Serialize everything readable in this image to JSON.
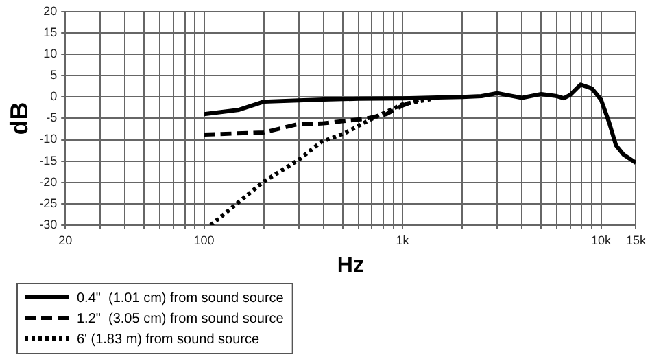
{
  "chart_data": {
    "type": "line",
    "xlabel": "Hz",
    "ylabel": "dB",
    "xlim": [
      20,
      15000
    ],
    "ylim": [
      -30,
      20
    ],
    "xticks": [
      20,
      {
        "value": 30,
        "label": null
      },
      {
        "value": 40,
        "label": null
      },
      {
        "value": 50,
        "label": null
      },
      {
        "value": 60,
        "label": null
      },
      {
        "value": 70,
        "label": null
      },
      {
        "value": 80,
        "label": null
      },
      {
        "value": 90,
        "label": null
      },
      100,
      {
        "value": 200,
        "label": null
      },
      {
        "value": 300,
        "label": null
      },
      {
        "value": 400,
        "label": null
      },
      {
        "value": 500,
        "label": null
      },
      {
        "value": 600,
        "label": null
      },
      {
        "value": 700,
        "label": null
      },
      {
        "value": 800,
        "label": null
      },
      {
        "value": 900,
        "label": null
      },
      {
        "value": 1000,
        "label": "1k"
      },
      {
        "value": 2000,
        "label": null
      },
      {
        "value": 3000,
        "label": null
      },
      {
        "value": 4000,
        "label": null
      },
      {
        "value": 5000,
        "label": null
      },
      {
        "value": 6000,
        "label": null
      },
      {
        "value": 7000,
        "label": null
      },
      {
        "value": 8000,
        "label": null
      },
      {
        "value": 9000,
        "label": null
      },
      {
        "value": 10000,
        "label": "10k"
      },
      {
        "value": 15000,
        "label": "15k"
      }
    ],
    "yticks": [
      -30,
      -25,
      -20,
      -15,
      -10,
      -5,
      0,
      5,
      10,
      15,
      20
    ],
    "log": "x",
    "grid": true,
    "legend": "bottom left",
    "marker": "none",
    "series": [
      {
        "name": "0.4\"  (1.01 cm) from sound source",
        "color": "#000000",
        "line_style": "solid",
        "x": [
          100,
          150,
          200,
          300,
          400,
          600,
          1000,
          1500,
          2000,
          2500,
          3000,
          3500,
          4000,
          5000,
          6000,
          6500,
          7000,
          7900,
          9000,
          10000,
          11000,
          11900,
          13000,
          15000
        ],
        "values": [
          -4,
          -3,
          -1.1,
          -0.8,
          -0.6,
          -0.4,
          -0.3,
          -0.1,
          0,
          0.2,
          0.9,
          0.3,
          -0.2,
          0.7,
          0.2,
          -0.3,
          0.5,
          2.9,
          2,
          -0.6,
          -6,
          -11.3,
          -13.5,
          -15.4
        ]
      },
      {
        "name": "1.2\"  (3.05 cm) from sound source",
        "color": "#000000",
        "line_style": "dashed",
        "x": [
          100,
          200,
          300,
          390,
          650,
          830,
          1000,
          1200
        ],
        "values": [
          -8.8,
          -8.3,
          -6.3,
          -6.2,
          -5.1,
          -4,
          -2,
          -0.6
        ]
      },
      {
        "name": "6' (1.83 m) from sound source",
        "color": "#000000",
        "line_style": "dotted",
        "x": [
          108,
          200,
          300,
          390,
          510,
          700,
          1000,
          1500
        ],
        "values": [
          -30,
          -19.8,
          -14.7,
          -10.5,
          -8.5,
          -5.1,
          -1.7,
          -0.2
        ]
      }
    ]
  }
}
